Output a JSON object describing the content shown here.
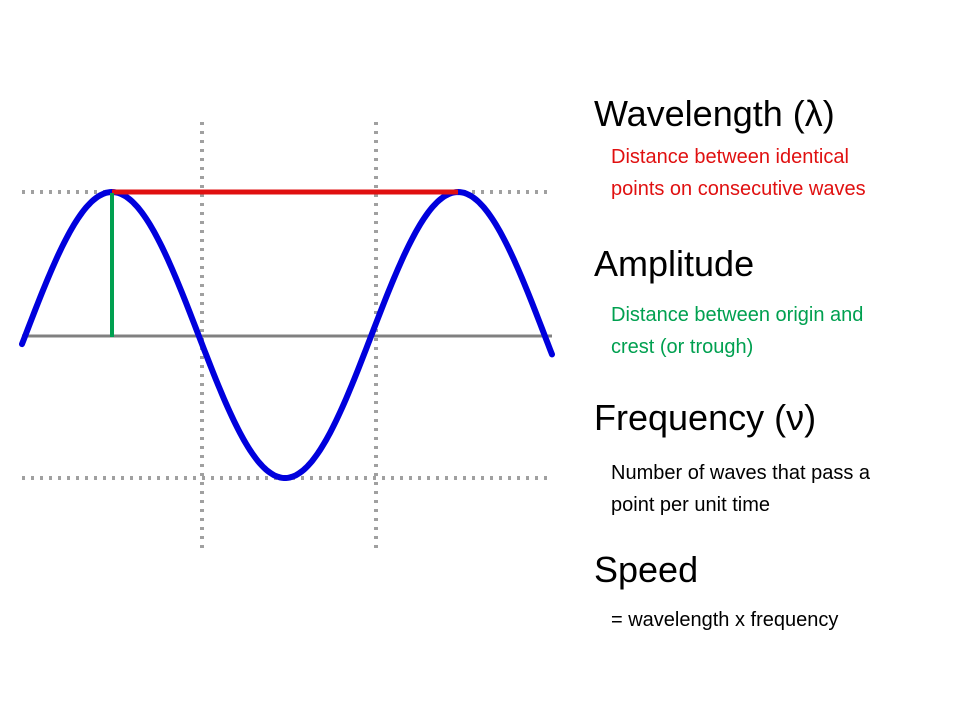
{
  "terms": [
    {
      "heading": "Wavelength (λ)",
      "description": [
        "Distance between identical",
        "points on consecutive waves"
      ]
    },
    {
      "heading": "Amplitude",
      "description": [
        "Distance between origin and",
        "crest (or trough)"
      ]
    },
    {
      "heading": "Frequency (ν)",
      "description": [
        "Number of waves that pass a",
        "point per unit time"
      ]
    },
    {
      "heading": "Speed",
      "description": [
        "= wavelength x frequency"
      ]
    }
  ]
}
